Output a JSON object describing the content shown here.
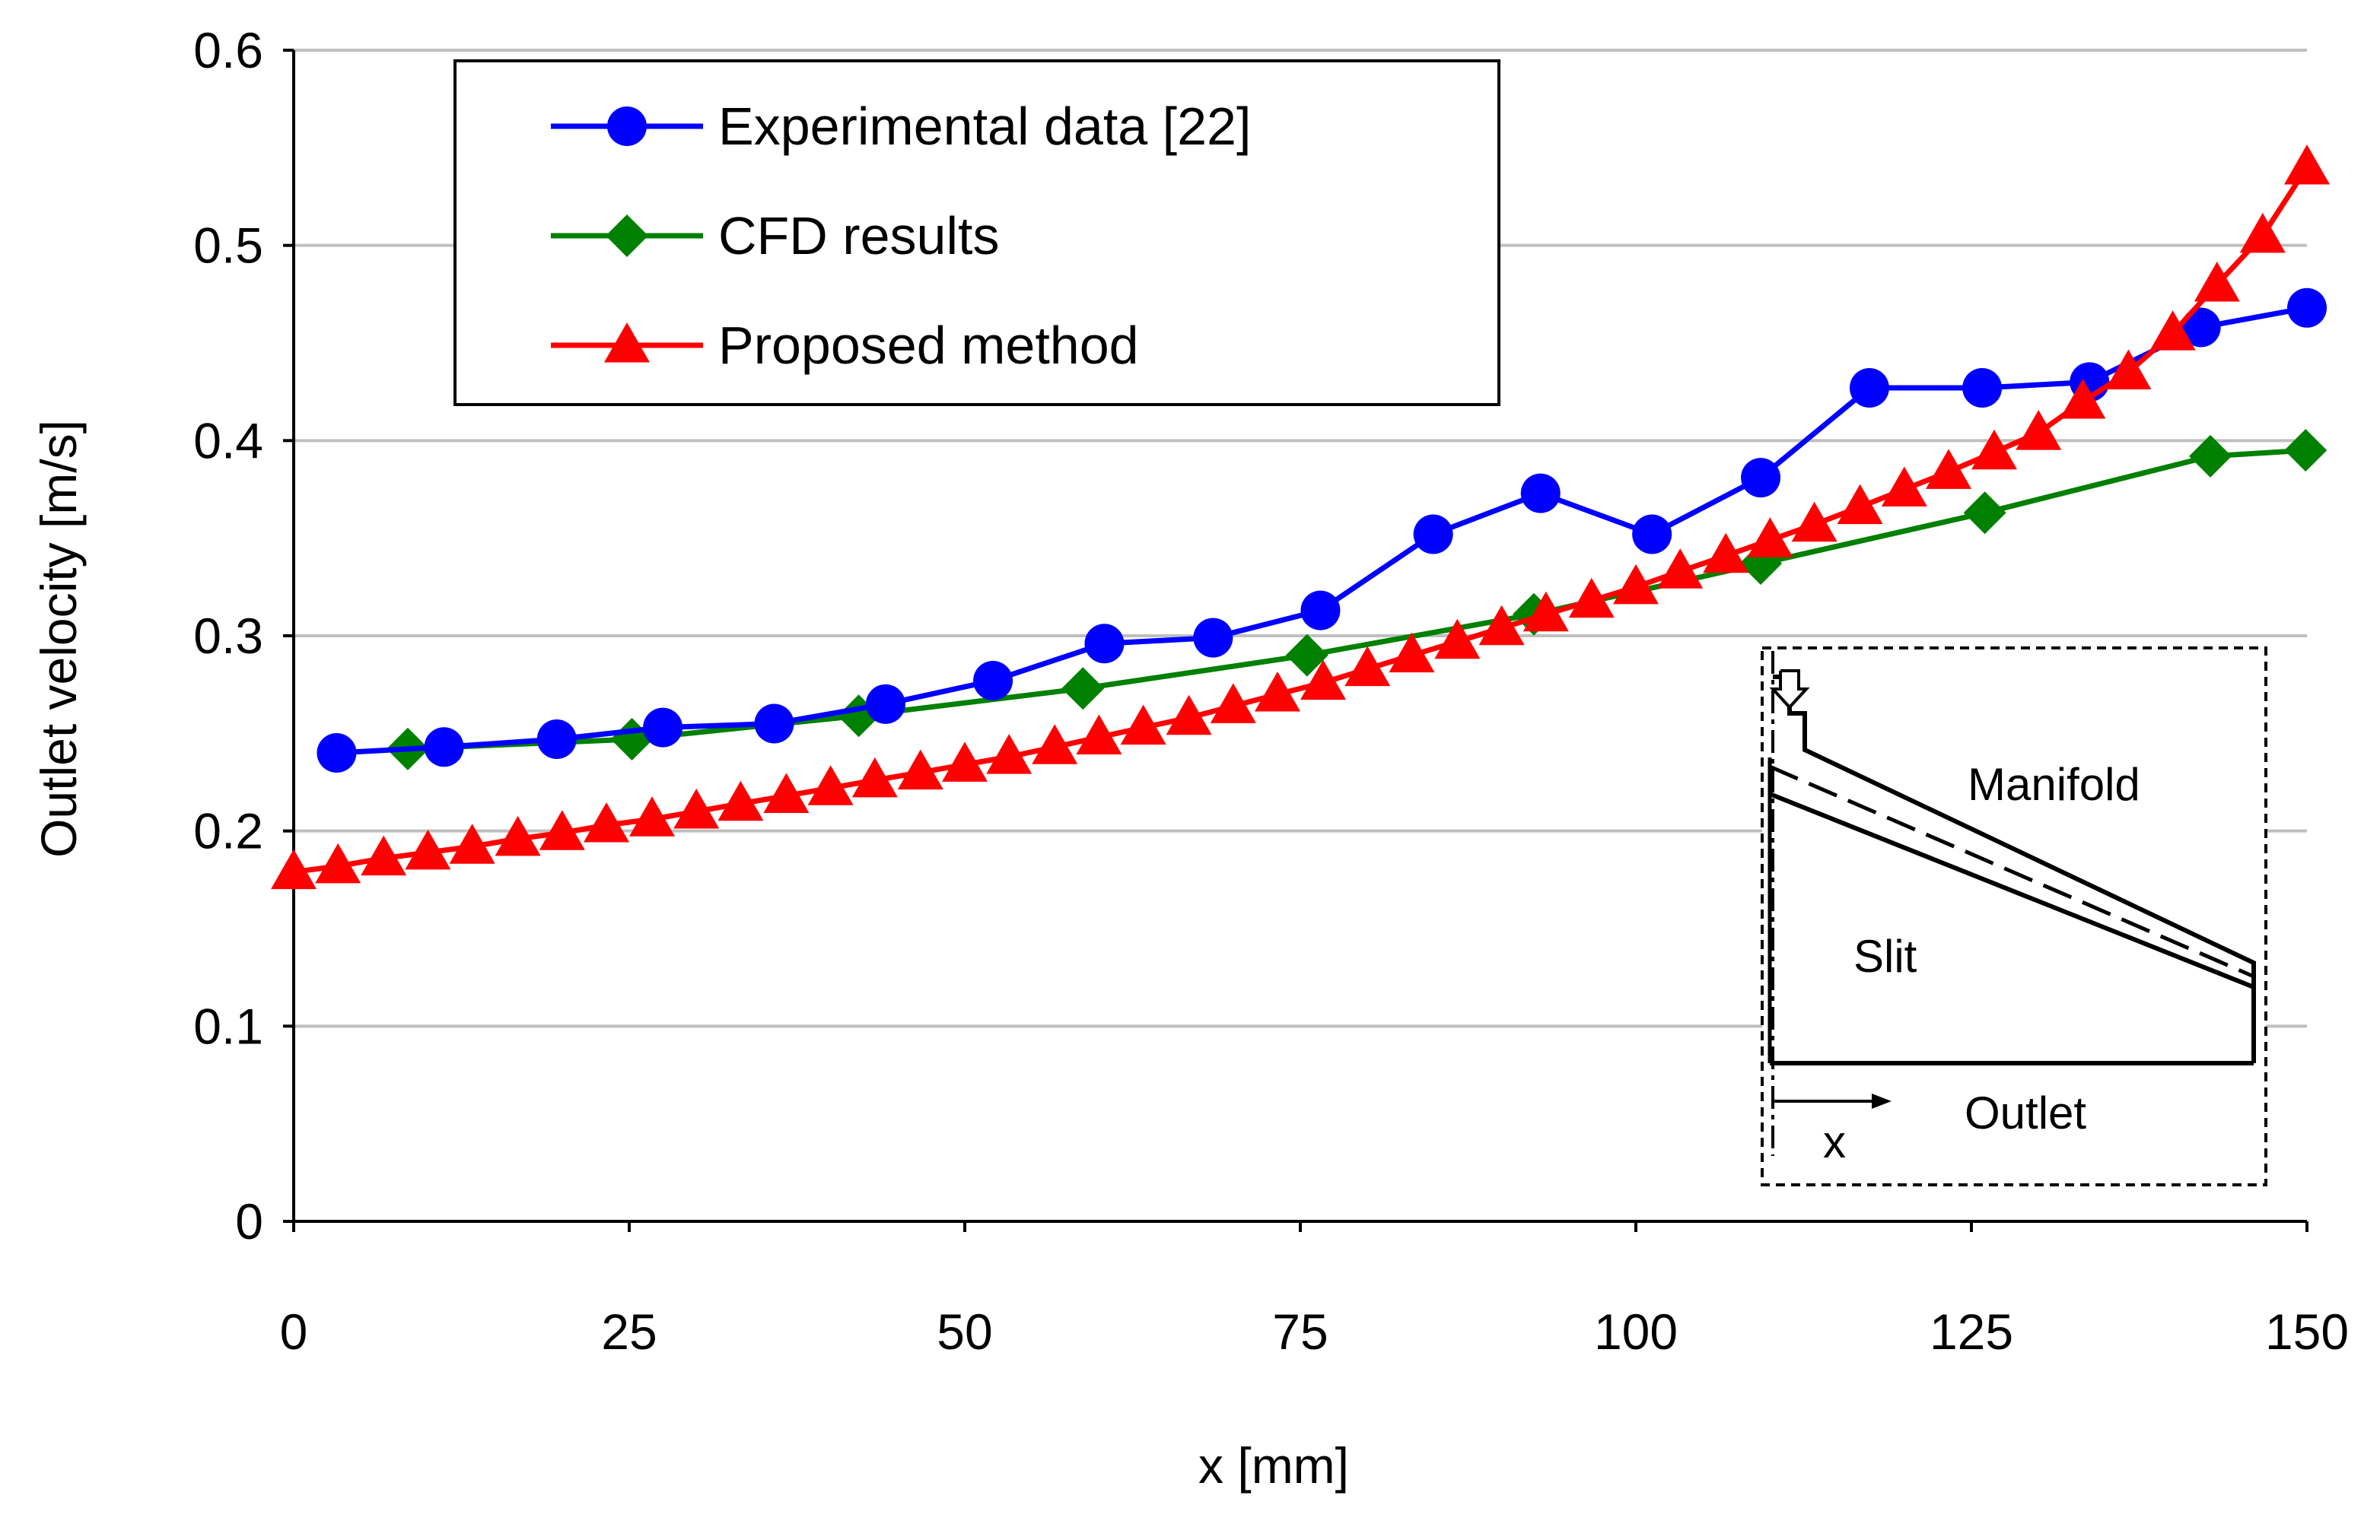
{
  "chart_data": {
    "type": "line",
    "title": "",
    "xlabel": "x [mm]",
    "ylabel": "Outlet velocity [m/s]",
    "xlim": [
      0,
      150
    ],
    "ylim": [
      0,
      0.6
    ],
    "xticks": [
      0,
      25,
      50,
      75,
      100,
      125,
      150
    ],
    "yticks": [
      0,
      0.1,
      0.2,
      0.3,
      0.4,
      0.5,
      0.6
    ],
    "xtick_labels": [
      "0",
      "25",
      "50",
      "75",
      "100",
      "125",
      "150"
    ],
    "ytick_labels": [
      "0",
      "0.1",
      "0.2",
      "0.3",
      "0.4",
      "0.5",
      "0.6"
    ],
    "grid": "horizontal",
    "legend_position": "top-left",
    "series": [
      {
        "name": "Experimental data [22]",
        "color": "#0000ff",
        "marker": "circle",
        "x": [
          3.2,
          11.2,
          19.6,
          27.5,
          35.8,
          44.1,
          52.1,
          60.4,
          68.5,
          76.5,
          84.9,
          92.9,
          101.2,
          109.3,
          117.4,
          125.8,
          133.8,
          142.1,
          150.0
        ],
        "y": [
          0.24,
          0.243,
          0.247,
          0.253,
          0.255,
          0.265,
          0.277,
          0.296,
          0.299,
          0.313,
          0.352,
          0.373,
          0.352,
          0.381,
          0.427,
          0.427,
          0.43,
          0.458,
          0.468
        ]
      },
      {
        "name": "CFD results",
        "color": "#008000",
        "marker": "diamond",
        "x": [
          8.5,
          25.2,
          42.1,
          58.8,
          75.5,
          92.4,
          109.3,
          126.0,
          142.8,
          149.9
        ],
        "y": [
          0.242,
          0.247,
          0.259,
          0.273,
          0.29,
          0.311,
          0.337,
          0.363,
          0.392,
          0.395
        ]
      },
      {
        "name": "Proposed method",
        "color": "#ff0000",
        "marker": "triangle",
        "x": [
          0,
          3.3,
          6.7,
          10,
          13.3,
          16.7,
          20,
          23.3,
          26.7,
          30,
          33.3,
          36.7,
          40,
          43.3,
          46.7,
          50,
          53.3,
          56.7,
          60,
          63.3,
          66.7,
          70,
          73.3,
          76.7,
          80,
          83.3,
          86.7,
          90,
          93.3,
          96.7,
          100,
          103.3,
          106.7,
          110,
          113.3,
          116.7,
          120,
          123.3,
          126.7,
          130,
          133.3,
          136.7,
          140,
          143.3,
          146.7,
          150
        ],
        "y": [
          0.179,
          0.182,
          0.186,
          0.189,
          0.192,
          0.196,
          0.199,
          0.203,
          0.206,
          0.21,
          0.214,
          0.218,
          0.222,
          0.226,
          0.23,
          0.234,
          0.238,
          0.243,
          0.248,
          0.253,
          0.258,
          0.264,
          0.27,
          0.276,
          0.283,
          0.29,
          0.297,
          0.304,
          0.311,
          0.318,
          0.325,
          0.333,
          0.341,
          0.349,
          0.357,
          0.366,
          0.375,
          0.384,
          0.394,
          0.404,
          0.42,
          0.435,
          0.455,
          0.48,
          0.505,
          0.54
        ]
      }
    ],
    "inset": {
      "labels": {
        "manifold": "Manifold",
        "slit": "Slit",
        "outlet": "Outlet",
        "x_arrow": "x"
      }
    }
  }
}
